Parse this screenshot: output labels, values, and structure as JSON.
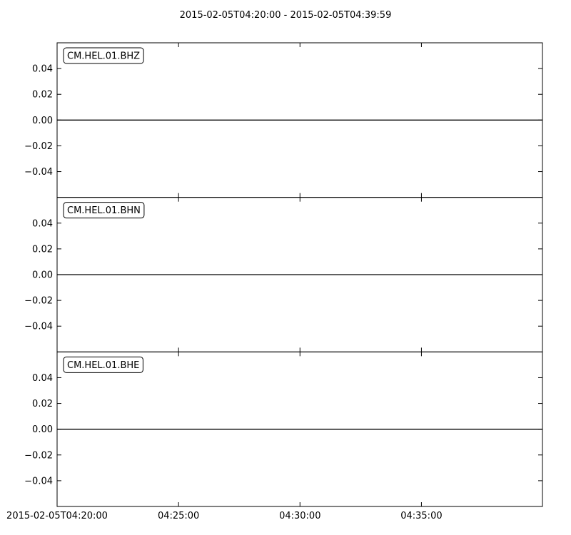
{
  "chart_data": {
    "type": "line",
    "title": "2015-02-05T04:20:00  -  2015-02-05T04:39:59",
    "x_range": [
      "2015-02-05T04:20:00",
      "2015-02-05T04:39:59"
    ],
    "x_ticks": [
      {
        "time": "2015-02-05T04:20:00",
        "label": "2015-02-05T04:20:00"
      },
      {
        "time": "2015-02-05T04:25:00",
        "label": "04:25:00"
      },
      {
        "time": "2015-02-05T04:30:00",
        "label": "04:30:00"
      },
      {
        "time": "2015-02-05T04:35:00",
        "label": "04:35:00"
      }
    ],
    "y_ticks": [
      0.04,
      0.02,
      0.0,
      -0.02,
      -0.04
    ],
    "y_tick_labels": [
      "0.04",
      "0.02",
      "0.00",
      "−0.02",
      "−0.04"
    ],
    "ylim": [
      -0.06,
      0.06
    ],
    "grid": false,
    "line_color": "#000000",
    "series": [
      {
        "name": "CM.HEL.01.BHZ",
        "x": [
          "2015-02-05T04:20:00",
          "2015-02-05T04:39:59"
        ],
        "values": [
          0.0,
          0.0
        ]
      },
      {
        "name": "CM.HEL.01.BHN",
        "x": [
          "2015-02-05T04:20:00",
          "2015-02-05T04:39:59"
        ],
        "values": [
          0.0,
          0.0
        ]
      },
      {
        "name": "CM.HEL.01.BHE",
        "x": [
          "2015-02-05T04:20:00",
          "2015-02-05T04:39:59"
        ],
        "values": [
          0.0,
          0.0
        ]
      }
    ]
  }
}
